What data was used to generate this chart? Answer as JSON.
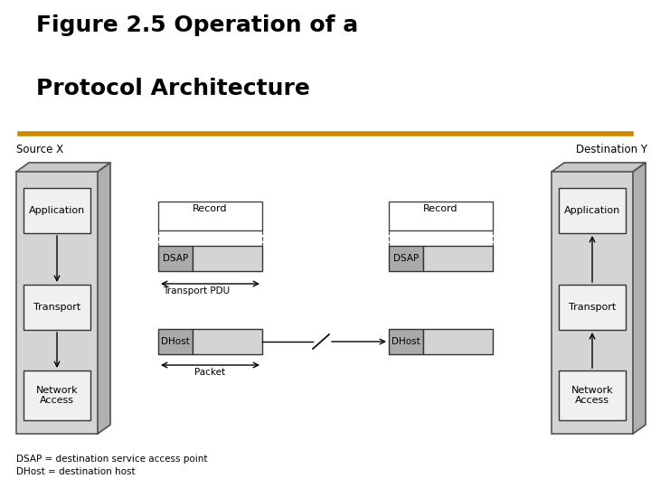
{
  "title_line1": "Figure 2.5 Operation of a",
  "title_line2": "Protocol Architecture",
  "title_color": "#000000",
  "orange_line_color": "#CC8800",
  "bg_color": "#ffffff",
  "source_label": "Source X",
  "dest_label": "Destination Y",
  "footnote1": "DSAP = destination service access point",
  "footnote2": "DHost = destination host",
  "tower_face": "#d4d4d4",
  "tower_side": "#b0b0b0",
  "tower_top": "#c8c8c8",
  "tower_edge": "#555555",
  "inner_box_face": "#f0f0f0",
  "inner_box_edge": "#333333",
  "dsap_face": "#aaaaaa",
  "record_face": "#ffffff",
  "pdu_body_face": "#d4d4d4"
}
